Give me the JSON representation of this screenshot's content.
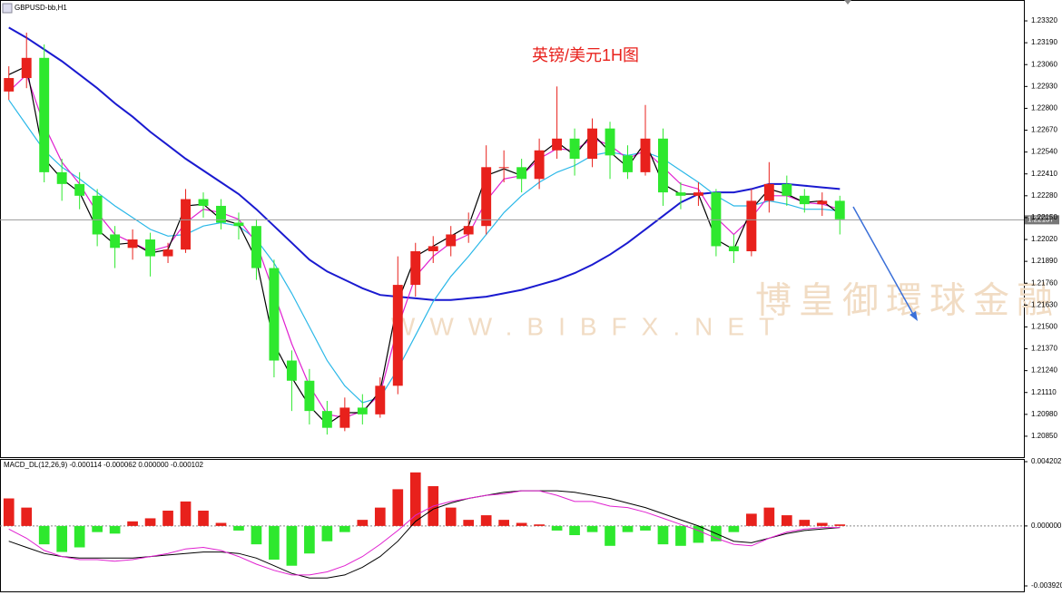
{
  "chart_data": [
    {
      "type": "candlestick",
      "title": "GBPUSD-bb,H1",
      "annotation": "英镑/美元1H图",
      "watermark": [
        "博皇御環球金融",
        "WWW.BIBFX.NET"
      ],
      "open": [
        1.229,
        1.2298,
        1.231,
        1.2242,
        1.2235,
        1.2228,
        1.2205,
        1.2197,
        1.2202,
        1.2192,
        1.2196,
        1.2226,
        1.2222,
        1.2212,
        1.221,
        1.2185,
        1.213,
        1.2118,
        1.21,
        1.209,
        1.2102,
        1.2098,
        1.2115,
        1.2175,
        1.2195,
        1.2198,
        1.2205,
        1.221,
        1.2245,
        1.2245,
        1.2238,
        1.2255,
        1.2262,
        1.225,
        1.2268,
        1.2252,
        1.2242,
        1.2262,
        1.223,
        1.2228,
        1.223,
        1.2198,
        1.2195,
        1.2225,
        1.2235,
        1.2228,
        1.2223,
        1.2225
      ],
      "high": [
        1.2305,
        1.2325,
        1.2318,
        1.225,
        1.2242,
        1.2232,
        1.221,
        1.2208,
        1.2206,
        1.22,
        1.2232,
        1.223,
        1.2226,
        1.2218,
        1.2214,
        1.219,
        1.2136,
        1.2125,
        1.2106,
        1.2108,
        1.211,
        1.212,
        1.2192,
        1.22,
        1.2204,
        1.221,
        1.2218,
        1.2258,
        1.2255,
        1.225,
        1.2262,
        1.2293,
        1.2268,
        1.2274,
        1.2272,
        1.2258,
        1.2282,
        1.2268,
        1.2236,
        1.2236,
        1.2232,
        1.2205,
        1.2232,
        1.2248,
        1.224,
        1.2232,
        1.223,
        1.2228
      ],
      "low": [
        1.2285,
        1.2292,
        1.2236,
        1.2225,
        1.222,
        1.2198,
        1.2185,
        1.219,
        1.218,
        1.2188,
        1.2194,
        1.2215,
        1.2208,
        1.2202,
        1.2178,
        1.212,
        1.21,
        1.2092,
        1.2086,
        1.2088,
        1.2092,
        1.2096,
        1.211,
        1.2168,
        1.2188,
        1.2192,
        1.22,
        1.2205,
        1.2236,
        1.223,
        1.2232,
        1.225,
        1.224,
        1.2245,
        1.2238,
        1.2238,
        1.224,
        1.2222,
        1.222,
        1.2222,
        1.2192,
        1.2188,
        1.2192,
        1.2218,
        1.2222,
        1.2218,
        1.2216,
        1.2205
      ],
      "close": [
        1.2298,
        1.231,
        1.2242,
        1.2235,
        1.2228,
        1.2205,
        1.2197,
        1.2202,
        1.2192,
        1.2196,
        1.2226,
        1.2222,
        1.2212,
        1.221,
        1.2185,
        1.213,
        1.2118,
        1.21,
        1.209,
        1.2102,
        1.2098,
        1.2115,
        1.2175,
        1.2195,
        1.2198,
        1.2205,
        1.221,
        1.2245,
        1.2245,
        1.2238,
        1.2255,
        1.2262,
        1.225,
        1.2268,
        1.2252,
        1.2242,
        1.2262,
        1.223,
        1.2228,
        1.223,
        1.2198,
        1.2195,
        1.2225,
        1.2235,
        1.2228,
        1.2223,
        1.2225,
        1.2214
      ],
      "up_color": "#e8211c",
      "down_color": "#2ee82e",
      "series": [
        {
          "color": "#1a1ad0",
          "values": [
            1.2328,
            1.2322,
            1.2315,
            1.2308,
            1.23,
            1.2292,
            1.2283,
            1.2275,
            1.2266,
            1.2258,
            1.225,
            1.2243,
            1.2236,
            1.2229,
            1.222,
            1.221,
            1.22,
            1.219,
            1.2183,
            1.2178,
            1.2173,
            1.2169,
            1.2168,
            1.2167,
            1.2166,
            1.2166,
            1.2167,
            1.2168,
            1.217,
            1.2172,
            1.2175,
            1.2178,
            1.2182,
            1.2187,
            1.2193,
            1.22,
            1.2208,
            1.2216,
            1.2224,
            1.2229,
            1.223,
            1.223,
            1.2232,
            1.2235,
            1.2235,
            1.2234,
            1.2233,
            1.2232
          ]
        },
        {
          "color": "#2bb8e8",
          "values": [
            1.2285,
            1.227,
            1.2255,
            1.2245,
            1.2238,
            1.223,
            1.2222,
            1.2215,
            1.2208,
            1.2204,
            1.2205,
            1.221,
            1.2212,
            1.221,
            1.2202,
            1.2188,
            1.217,
            1.215,
            1.213,
            1.2115,
            1.2105,
            1.2108,
            1.2125,
            1.2145,
            1.2165,
            1.218,
            1.2192,
            1.2205,
            1.2218,
            1.2228,
            1.2236,
            1.2242,
            1.2246,
            1.2252,
            1.2254,
            1.2252,
            1.2254,
            1.225,
            1.2243,
            1.2236,
            1.2228,
            1.2222,
            1.2222,
            1.2225,
            1.2223,
            1.222,
            1.222,
            1.2219
          ]
        },
        {
          "color": "#e020d0",
          "values": [
            1.229,
            1.23,
            1.227,
            1.2248,
            1.2235,
            1.2218,
            1.2205,
            1.22,
            1.2195,
            1.2198,
            1.2212,
            1.222,
            1.2218,
            1.2214,
            1.22,
            1.217,
            1.214,
            1.2115,
            1.2098,
            1.2096,
            1.21,
            1.211,
            1.215,
            1.218,
            1.2192,
            1.22,
            1.2205,
            1.2225,
            1.2238,
            1.224,
            1.225,
            1.2256,
            1.2255,
            1.2262,
            1.2258,
            1.225,
            1.2255,
            1.2245,
            1.2235,
            1.2232,
            1.2215,
            1.2205,
            1.2215,
            1.2228,
            1.2228,
            1.2224,
            1.2223,
            1.222
          ]
        },
        {
          "color": "#000000",
          "values": [
            1.23,
            1.2305,
            1.225,
            1.2238,
            1.223,
            1.2208,
            1.2199,
            1.22,
            1.2194,
            1.2196,
            1.2222,
            1.2223,
            1.2214,
            1.2211,
            1.219,
            1.214,
            1.212,
            1.2103,
            1.2092,
            1.2099,
            1.2099,
            1.2112,
            1.2165,
            1.2192,
            1.2198,
            1.2204,
            1.221,
            1.224,
            1.2244,
            1.224,
            1.2252,
            1.226,
            1.2252,
            1.2265,
            1.2254,
            1.2245,
            1.226,
            1.2235,
            1.2229,
            1.2229,
            1.2202,
            1.2196,
            1.222,
            1.2232,
            1.2229,
            1.2224,
            1.2225,
            1.2217
          ]
        }
      ],
      "last_price": 1.22137,
      "ylim": [
        1.20731,
        1.23428
      ],
      "yticks": [
        {
          "value": 1.2332,
          "label": "1.23320"
        },
        {
          "value": 1.2319,
          "label": "1.23190"
        },
        {
          "value": 1.2306,
          "label": "1.23060"
        },
        {
          "value": 1.2293,
          "label": "1.22930"
        },
        {
          "value": 1.228,
          "label": "1.22800"
        },
        {
          "value": 1.2267,
          "label": "1.22670"
        },
        {
          "value": 1.2254,
          "label": "1.22540"
        },
        {
          "value": 1.2241,
          "label": "1.22410"
        },
        {
          "value": 1.2228,
          "label": "1.22280"
        },
        {
          "value": 1.2215,
          "label": "1.22150"
        },
        {
          "value": 1.2202,
          "label": "1.22020"
        },
        {
          "value": 1.2189,
          "label": "1.21890"
        },
        {
          "value": 1.2176,
          "label": "1.21760"
        },
        {
          "value": 1.2163,
          "label": "1.21630"
        },
        {
          "value": 1.215,
          "label": "1.21500"
        },
        {
          "value": 1.2137,
          "label": "1.21370"
        },
        {
          "value": 1.2124,
          "label": "1.21240"
        },
        {
          "value": 1.2111,
          "label": "1.21110"
        },
        {
          "value": 1.2098,
          "label": "1.20980"
        },
        {
          "value": 1.2085,
          "label": "1.20850"
        }
      ]
    },
    {
      "type": "macd",
      "title": "MACD_DL(12,26,9) -0.000114 -0.000062 0.000000 -0.000102",
      "values": [
        0.0018,
        0.0012,
        -0.0012,
        -0.0017,
        -0.0014,
        -0.0004,
        -0.0005,
        0.0003,
        0.0005,
        0.001,
        0.0016,
        0.001,
        0.0002,
        -0.0003,
        -0.0012,
        -0.0022,
        -0.0026,
        -0.0018,
        -0.001,
        -0.0004,
        0.0004,
        0.0012,
        0.0024,
        0.0035,
        0.0026,
        0.0012,
        0.0004,
        0.0007,
        0.0004,
        0.0002,
        0.0001,
        -0.0003,
        -0.0006,
        -0.0004,
        -0.0013,
        -0.0004,
        -0.0003,
        -0.0012,
        -0.0013,
        -0.0011,
        -0.001,
        -0.0004,
        0.0008,
        0.0012,
        0.0007,
        0.0004,
        0.0002,
        0.0001
      ],
      "up_color": "#e8211c",
      "down_color": "#2ee82e",
      "series": [
        {
          "color": "#000000",
          "values": [
            -0.001,
            -0.0014,
            -0.0018,
            -0.002,
            -0.0021,
            -0.0021,
            -0.0021,
            -0.0021,
            -0.002,
            -0.0019,
            -0.0018,
            -0.0017,
            -0.0017,
            -0.0018,
            -0.0021,
            -0.0026,
            -0.0031,
            -0.0034,
            -0.0034,
            -0.0032,
            -0.0027,
            -0.002,
            -0.001,
            0.0003,
            0.0011,
            0.0015,
            0.0018,
            0.002,
            0.0022,
            0.0023,
            0.0023,
            0.0023,
            0.0022,
            0.002,
            0.0018,
            0.0015,
            0.0012,
            0.0008,
            0.0004,
            0.0,
            -0.0005,
            -0.001,
            -0.0011,
            -0.0008,
            -0.0005,
            -0.0003,
            -0.0002,
            -0.0001
          ]
        },
        {
          "color": "#e020d0",
          "values": [
            -0.0002,
            -0.0008,
            -0.0016,
            -0.002,
            -0.0022,
            -0.0022,
            -0.0023,
            -0.0022,
            -0.002,
            -0.0018,
            -0.0015,
            -0.0014,
            -0.0016,
            -0.002,
            -0.0025,
            -0.0029,
            -0.0032,
            -0.0032,
            -0.003,
            -0.0026,
            -0.002,
            -0.0012,
            -0.0003,
            0.0007,
            0.0013,
            0.0016,
            0.0018,
            0.002,
            0.0021,
            0.0023,
            0.0023,
            0.002,
            0.0016,
            0.0016,
            0.0013,
            0.0012,
            0.0009,
            0.0005,
            0.0001,
            -0.0003,
            -0.0008,
            -0.0012,
            -0.0013,
            -0.0008,
            -0.0004,
            -0.0002,
            -0.0001,
            -0.0001
          ]
        }
      ],
      "ylim": [
        -0.00392,
        0.004202
      ],
      "yticks": [
        0.004202,
        {
          "value": 0,
          "label": "0.000000"
        },
        {
          "value": -0.00392,
          "label": "-0.003920"
        }
      ]
    }
  ]
}
